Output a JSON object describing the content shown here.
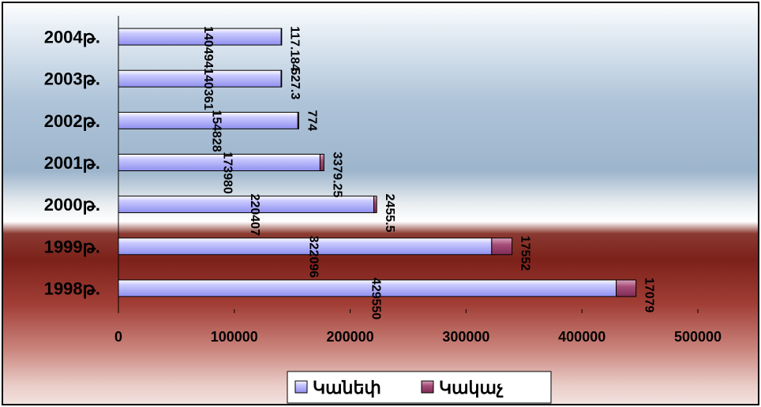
{
  "chart_data": {
    "type": "bar",
    "orientation": "horizontal",
    "stacked": true,
    "categories": [
      "1998թ.",
      "1999թ.",
      "2000թ.",
      "2001թ.",
      "2002թ.",
      "2003թ.",
      "2004թ."
    ],
    "series": [
      {
        "name": "Կանեփ",
        "values": [
          429550,
          322096,
          220407,
          173980,
          154828,
          140361,
          140494
        ],
        "labels": [
          "429550",
          "322096",
          "220407",
          "173980",
          "154828",
          "140361",
          "140494"
        ],
        "color": "#9999ff"
      },
      {
        "name": "Կակաչ",
        "values": [
          17079,
          17552,
          2455.5,
          3379.25,
          774,
          527.3,
          117.184
        ],
        "labels": [
          "17079",
          "17552",
          "2455.5",
          "3379.25",
          "774",
          "527.3",
          "117.184"
        ],
        "color": "#993366"
      }
    ],
    "xlim": [
      0,
      500000
    ],
    "xticks": [
      0,
      100000,
      200000,
      300000,
      400000,
      500000
    ],
    "xtick_labels": [
      "0",
      "100000",
      "200000",
      "300000",
      "400000",
      "500000"
    ],
    "legend_position": "bottom",
    "grid": false
  }
}
